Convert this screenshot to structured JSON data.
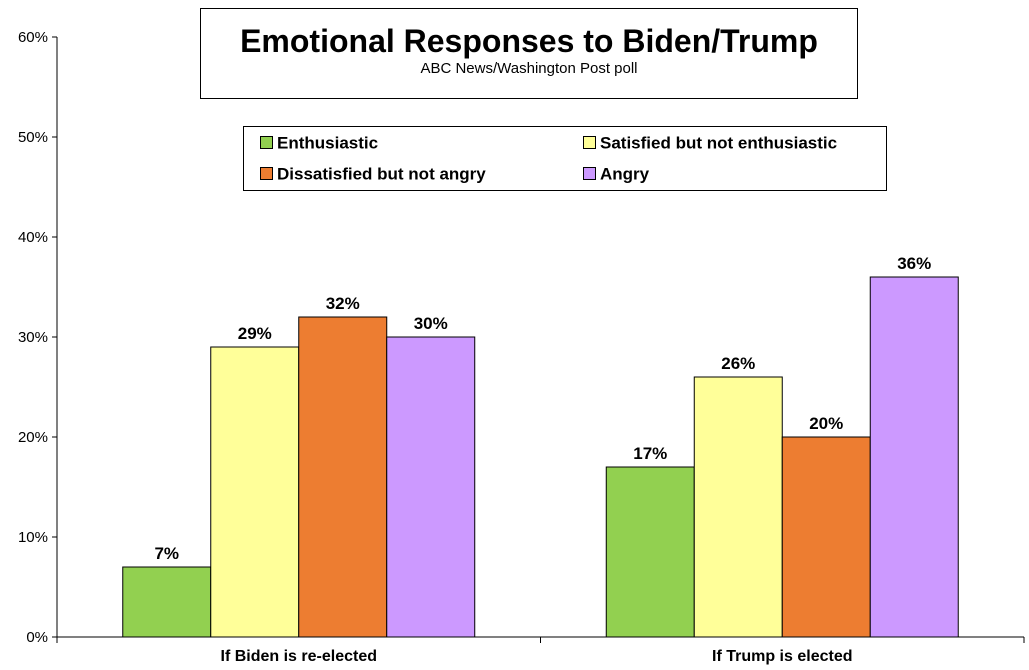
{
  "chart_data": {
    "type": "bar",
    "title": "Emotional Responses to Biden/Trump",
    "subtitle": "ABC News/Washington  Post poll",
    "categories": [
      "If Biden is re-elected",
      "If Trump is elected"
    ],
    "series": [
      {
        "name": "Enthusiastic",
        "color": "#92d050",
        "values": [
          7,
          17
        ],
        "labels": [
          "7%",
          "17%"
        ]
      },
      {
        "name": "Satisfied but not enthusiastic",
        "color": "#ffff99",
        "values": [
          29,
          26
        ],
        "labels": [
          "29%",
          "26%"
        ]
      },
      {
        "name": "Dissatisfied but not angry",
        "color": "#ed7d31",
        "values": [
          32,
          20
        ],
        "labels": [
          "32%",
          "20%"
        ]
      },
      {
        "name": "Angry",
        "color": "#cc99ff",
        "values": [
          30,
          36
        ],
        "labels": [
          "30%",
          "36%"
        ]
      }
    ],
    "ylim": [
      0,
      60
    ],
    "yticks": [
      0,
      10,
      20,
      30,
      40,
      50,
      60
    ],
    "ytick_labels": [
      "0%",
      "10%",
      "20%",
      "30%",
      "40%",
      "50%",
      "60%"
    ],
    "xlabel": "",
    "ylabel": "",
    "grid": false,
    "legend_position": "top-center"
  }
}
